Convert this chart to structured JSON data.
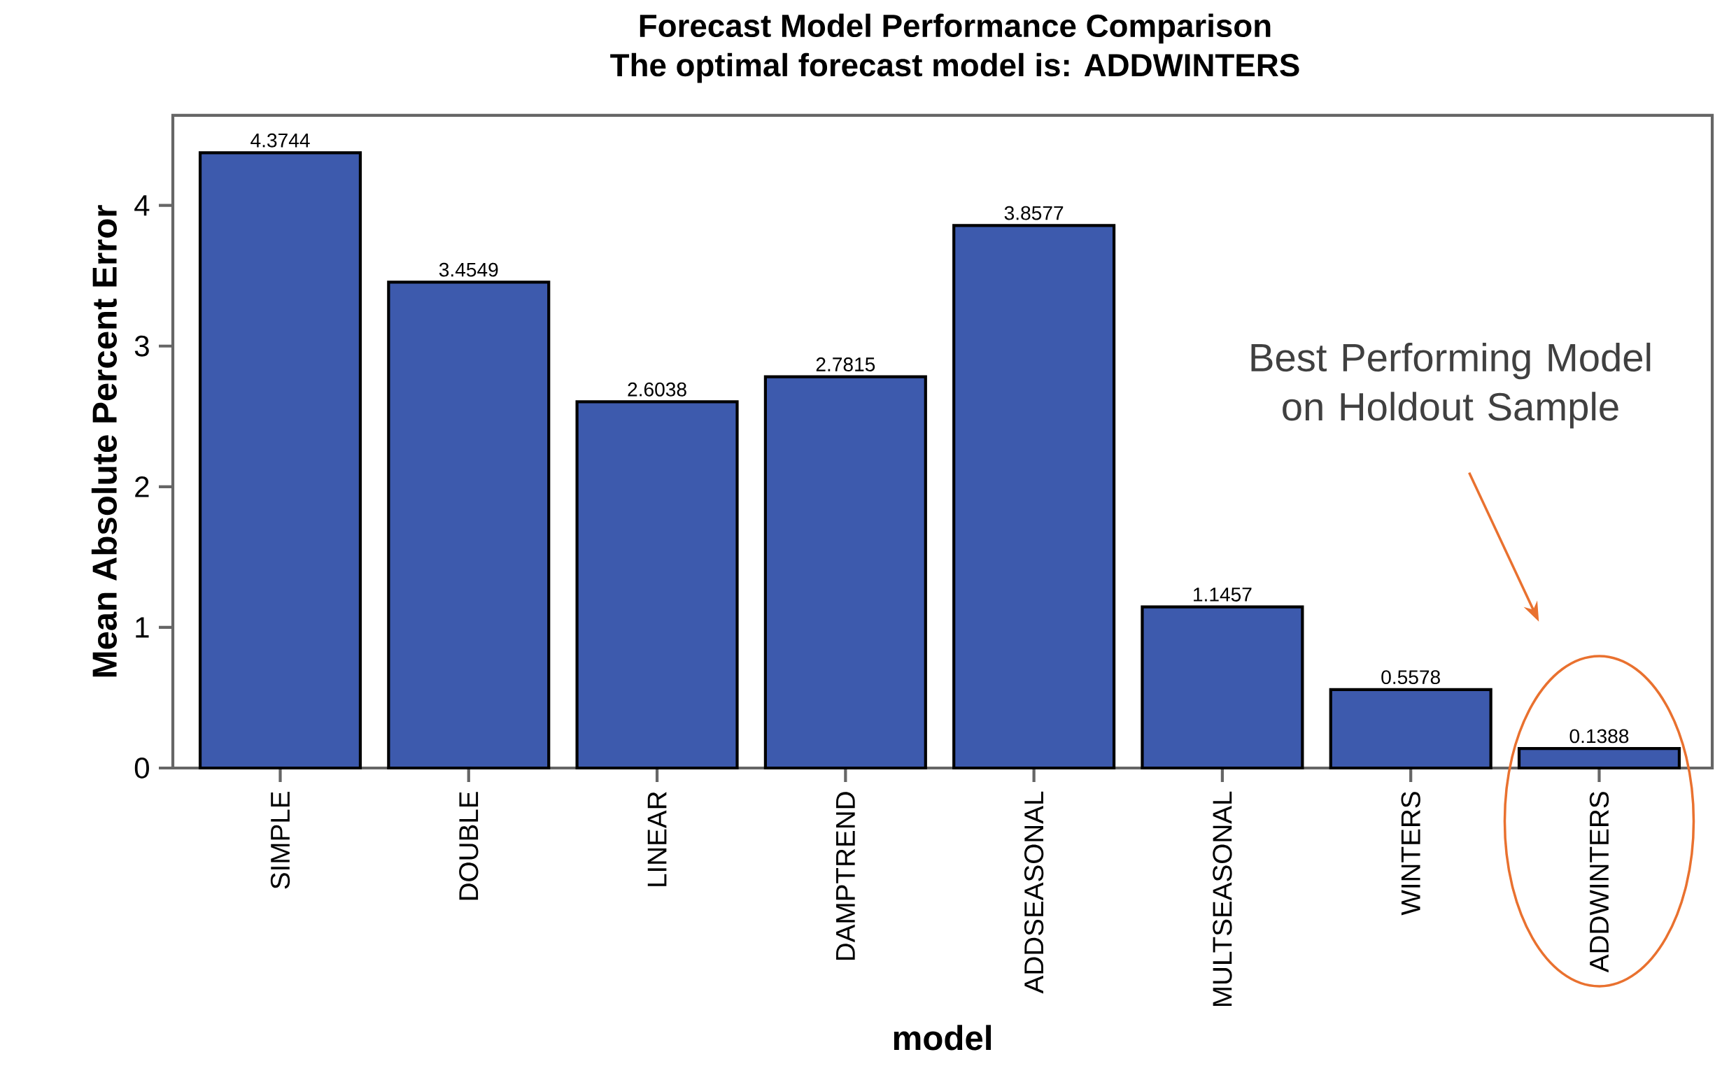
{
  "chart_data": {
    "type": "bar",
    "title": "Forecast Model Performance Comparison",
    "subtitle": "The optimal forecast model is: ADDWINTERS",
    "xlabel": "model",
    "ylabel": "Mean Absolute Percent Error",
    "categories": [
      "SIMPLE",
      "DOUBLE",
      "LINEAR",
      "DAMPTREND",
      "ADDSEASONAL",
      "MULTSEASONAL",
      "WINTERS",
      "ADDWINTERS"
    ],
    "values": [
      4.3744,
      3.4549,
      2.6038,
      2.7815,
      3.8577,
      1.1457,
      0.5578,
      0.1388
    ],
    "color": "#3d5aad",
    "data_labels": true,
    "ylim": [
      0,
      4.64
    ],
    "yticks": [
      0,
      1,
      2,
      3,
      4
    ],
    "annotations": [
      "Best Performing Model on Holdout Sample"
    ]
  }
}
